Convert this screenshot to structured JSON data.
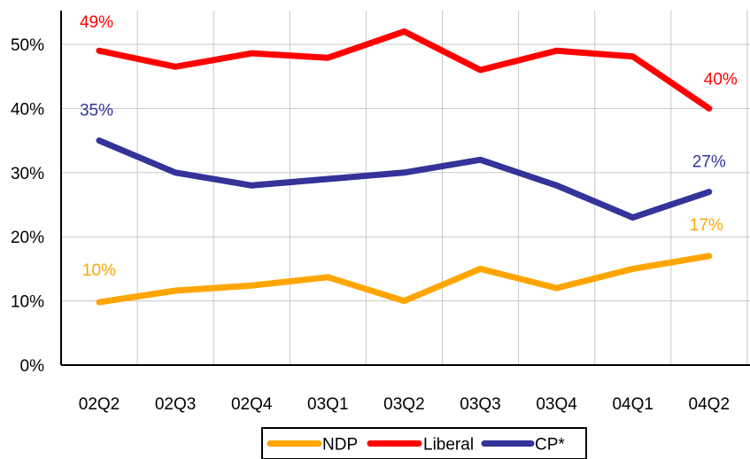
{
  "chart_data": {
    "type": "line",
    "categories": [
      "02Q2",
      "02Q3",
      "02Q4",
      "03Q1",
      "03Q2",
      "03Q3",
      "03Q4",
      "04Q1",
      "04Q2"
    ],
    "ylim": [
      0,
      55
    ],
    "yticks": [
      0,
      10,
      20,
      30,
      40,
      50
    ],
    "ytick_labels": [
      "0%",
      "10%",
      "20%",
      "30%",
      "40%",
      "50%"
    ],
    "grid": true,
    "legend_position": "bottom",
    "series": [
      {
        "name": "NDP",
        "color": "#FFA500",
        "values": [
          9.8,
          11.6,
          12.4,
          13.7,
          10.0,
          15.0,
          12.0,
          15.0,
          17.0
        ],
        "labels": [
          {
            "index": 0,
            "text": "10%"
          },
          {
            "index": 8,
            "text": "17%"
          }
        ]
      },
      {
        "name": "Liberal",
        "color": "#FF0000",
        "values": [
          49.0,
          46.5,
          48.6,
          47.9,
          52.0,
          46.0,
          49.0,
          48.1,
          40.0
        ],
        "labels": [
          {
            "index": 0,
            "text": "49%"
          },
          {
            "index": 8,
            "text": "40%"
          }
        ]
      },
      {
        "name": "CP*",
        "color": "#333399",
        "values": [
          35.0,
          30.0,
          28.0,
          29.0,
          30.0,
          32.0,
          28.0,
          23.0,
          27.0
        ],
        "labels": [
          {
            "index": 0,
            "text": "35%"
          },
          {
            "index": 8,
            "text": "27%"
          }
        ]
      }
    ]
  }
}
